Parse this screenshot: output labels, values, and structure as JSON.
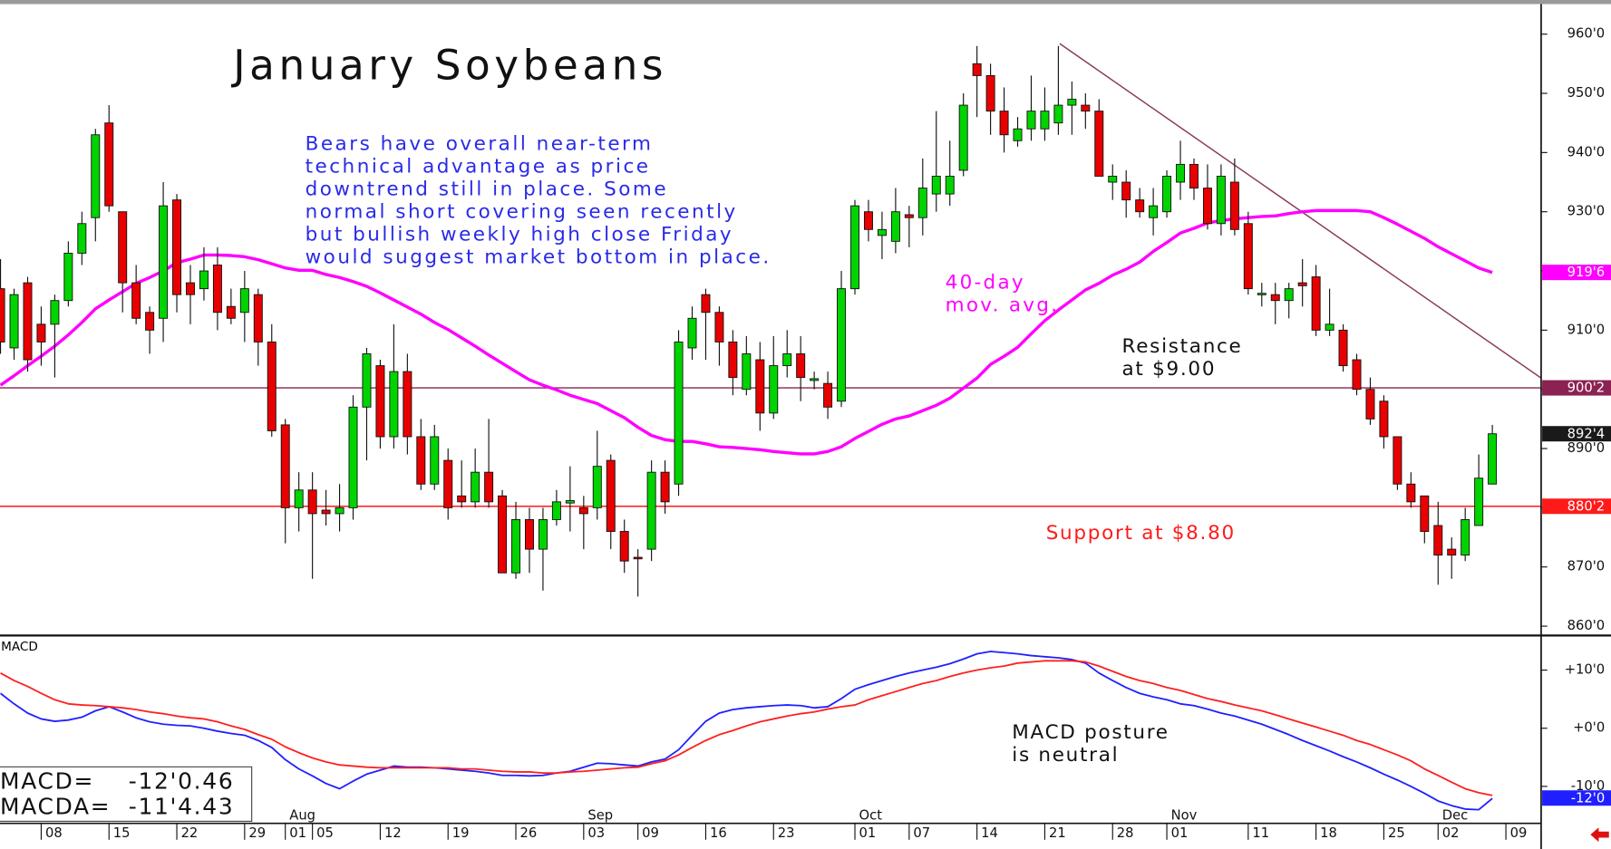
{
  "chart_data": {
    "type": "candlestick",
    "title": "January Soybeans",
    "comment": [
      "Bears have overall near-term",
      "technical advantage as price",
      "downtrend still in place. Some",
      "normal short covering seen recently",
      "but bullish weekly high close Friday",
      "would suggest market bottom in place."
    ],
    "categories": [
      null,
      null,
      null,
      "08",
      null,
      null,
      null,
      null,
      "15",
      null,
      null,
      null,
      null,
      "22",
      null,
      null,
      null,
      null,
      "29",
      null,
      null,
      "01",
      null,
      "05",
      null,
      null,
      null,
      null,
      "12",
      null,
      null,
      null,
      null,
      "19",
      null,
      null,
      null,
      null,
      "26",
      null,
      null,
      null,
      null,
      "03",
      null,
      null,
      null,
      "09",
      null,
      null,
      null,
      null,
      "16",
      null,
      null,
      null,
      null,
      "23",
      null,
      null,
      null,
      null,
      null,
      "01",
      null,
      null,
      null,
      "07",
      null,
      null,
      null,
      null,
      "14",
      null,
      null,
      null,
      null,
      "21",
      null,
      null,
      null,
      null,
      "28",
      null,
      null,
      null,
      "01",
      null,
      null,
      null,
      null,
      null,
      "11",
      null,
      null,
      null,
      null,
      "18",
      null,
      null,
      null,
      null,
      "25",
      null,
      null,
      null,
      "02",
      null,
      null,
      null,
      null,
      "09"
    ],
    "months": [
      null,
      null,
      null,
      null,
      null,
      null,
      null,
      null,
      null,
      null,
      null,
      null,
      null,
      null,
      null,
      null,
      null,
      null,
      null,
      null,
      null,
      "Aug",
      null,
      null,
      null,
      null,
      null,
      null,
      null,
      null,
      null,
      null,
      null,
      null,
      null,
      null,
      null,
      null,
      null,
      null,
      null,
      null,
      null,
      "Sep",
      null,
      null,
      null,
      null,
      null,
      null,
      null,
      null,
      null,
      null,
      null,
      null,
      null,
      null,
      null,
      null,
      null,
      null,
      null,
      "Oct",
      null,
      null,
      null,
      null,
      null,
      null,
      null,
      null,
      null,
      null,
      null,
      null,
      null,
      null,
      null,
      null,
      null,
      null,
      null,
      null,
      null,
      null,
      "Nov",
      null,
      null,
      null,
      null,
      null,
      null,
      null,
      null,
      null,
      null,
      null,
      null,
      null,
      null,
      null,
      null,
      null,
      null,
      null,
      "Dec",
      null,
      null,
      null,
      null,
      null
    ],
    "open": [
      917,
      907,
      918,
      911,
      911,
      915,
      923,
      929,
      945,
      930,
      918,
      913,
      912,
      932,
      918,
      917,
      921,
      914,
      913,
      916,
      908,
      894,
      880,
      883,
      879.6,
      879,
      880,
      897,
      904,
      892,
      903,
      892,
      884,
      888,
      882,
      881,
      886,
      882,
      869,
      878,
      873,
      878,
      880.8,
      880,
      880,
      888,
      876,
      871.6,
      873,
      886,
      884,
      907,
      916,
      913,
      908,
      900,
      905,
      896,
      904,
      906,
      901.5,
      901,
      898,
      917,
      930,
      926,
      925,
      929.5,
      929,
      933,
      933,
      937,
      955,
      953,
      947,
      942,
      944,
      944,
      945,
      948,
      948,
      947,
      935,
      935,
      932,
      929,
      930,
      935,
      938,
      934,
      928,
      935,
      928,
      916,
      916,
      915,
      918,
      919,
      910,
      910,
      905,
      900,
      898,
      892,
      884,
      882,
      877,
      873,
      872,
      877,
      884,
      null
    ],
    "high": [
      922,
      917,
      919,
      914,
      916,
      925,
      930,
      944,
      948,
      930,
      921,
      914,
      935,
      933,
      921,
      924,
      924,
      917,
      920,
      917,
      911,
      895,
      886,
      886,
      883,
      884,
      899,
      907,
      905,
      911,
      906,
      895,
      894,
      890,
      888,
      890,
      895,
      883,
      881,
      880,
      880,
      883,
      887,
      882,
      893,
      889,
      878,
      873,
      888,
      888,
      910,
      914,
      917,
      914,
      910,
      909,
      908,
      909,
      910,
      909,
      903,
      903,
      920,
      932,
      932,
      930,
      934,
      931,
      939,
      947,
      942,
      950,
      958,
      955,
      951,
      946,
      953,
      951,
      958,
      952,
      950,
      949,
      938,
      937,
      934,
      934,
      937,
      942,
      939,
      938,
      938,
      939,
      930,
      918,
      918,
      918,
      922,
      921,
      917,
      911,
      906,
      902,
      899,
      892,
      886,
      882,
      881,
      875,
      880,
      889,
      894,
      null
    ],
    "low": [
      906,
      905,
      903,
      904,
      902,
      914,
      921,
      925,
      930,
      913,
      911,
      906,
      908,
      913,
      911,
      915,
      910,
      911,
      908,
      904,
      892,
      874,
      876,
      868,
      877,
      876,
      878,
      888,
      890,
      890,
      889,
      883,
      883,
      878,
      880,
      880,
      880,
      869,
      868,
      869,
      866,
      877,
      876,
      873,
      878,
      873,
      869,
      865,
      871,
      879,
      882,
      905,
      905,
      904,
      899,
      899,
      893,
      895,
      902,
      898,
      900,
      895,
      897,
      916,
      925,
      922,
      923,
      924,
      926,
      930,
      931,
      936,
      946,
      943,
      940,
      941,
      942,
      942,
      943,
      943,
      944,
      936,
      932,
      929,
      929,
      926,
      929,
      932,
      932,
      927,
      926,
      926,
      916,
      914,
      911,
      912,
      914,
      909,
      909,
      903,
      899,
      894,
      890,
      883,
      880,
      874,
      867,
      868,
      871,
      877,
      884,
      null
    ],
    "close": [
      908,
      916,
      905,
      908,
      915,
      923,
      928,
      943,
      931,
      918,
      912,
      910,
      931,
      916,
      916,
      920,
      913,
      912,
      917,
      908,
      893,
      880,
      883,
      879,
      879,
      880,
      897,
      906,
      892,
      903,
      892,
      884,
      892,
      880,
      881,
      886,
      881,
      869,
      878,
      873,
      878,
      881,
      881.2,
      879,
      887,
      876,
      871,
      871.4,
      886,
      881,
      908,
      912,
      913,
      908,
      902,
      906,
      896,
      904,
      906,
      902,
      901.8,
      897,
      917,
      931,
      927,
      927,
      930,
      929,
      934,
      936,
      936,
      948,
      953,
      947,
      943,
      944,
      947,
      947,
      948,
      949,
      947,
      936,
      936,
      932,
      930,
      931,
      936,
      938,
      934,
      928,
      936,
      927,
      917,
      916.2,
      915,
      917,
      917.5,
      910,
      911,
      904,
      900,
      895,
      892,
      884,
      881,
      876,
      872,
      872,
      878,
      885,
      892.5,
      null
    ],
    "up_color": "#00d400",
    "down_color": "#e80000",
    "ma": {
      "label_lines": [
        "40-day",
        "mov. avg."
      ],
      "color": "#ff00ff",
      "values": [
        900.7,
        902.3,
        904.0,
        905.6,
        907.3,
        909.2,
        911.3,
        913.6,
        915.1,
        916.5,
        917.9,
        918.9,
        920.0,
        921.4,
        922.0,
        922.7,
        922.7,
        922.6,
        922.4,
        921.9,
        921.2,
        920.5,
        920.1,
        920.1,
        919.4,
        918.9,
        918.2,
        917.4,
        916.3,
        915.1,
        913.9,
        912.7,
        911.3,
        910.1,
        908.7,
        907.3,
        905.8,
        904.4,
        903.0,
        901.6,
        900.7,
        899.9,
        899.0,
        898.3,
        897.6,
        896.4,
        895.2,
        893.6,
        892.2,
        891.5,
        891.2,
        891.2,
        890.8,
        890.3,
        890.2,
        890.0,
        889.8,
        889.5,
        889.3,
        889.1,
        889.1,
        889.5,
        890.3,
        891.7,
        892.9,
        894.1,
        895.0,
        895.5,
        896.4,
        897.3,
        898.5,
        900.2,
        901.9,
        904.2,
        905.6,
        907.1,
        909.4,
        911.6,
        913.4,
        915.1,
        916.8,
        917.9,
        919.3,
        920.3,
        921.5,
        923.3,
        924.8,
        926.4,
        927.2,
        928.1,
        928.5,
        928.8,
        929.0,
        929.2,
        929.3,
        929.7,
        930.0,
        930.2,
        930.2,
        930.2,
        930.2,
        930.0,
        929.0,
        927.9,
        926.7,
        925.5,
        924.1,
        922.9,
        921.7,
        920.5,
        919.75,
        null
      ]
    },
    "ylim": [
      858.6,
      964.9
    ],
    "yticks": [
      {
        "value": 960,
        "label": "960'0"
      },
      {
        "value": 950,
        "label": "950'0"
      },
      {
        "value": 940,
        "label": "940'0"
      },
      {
        "value": 930,
        "label": "930'0"
      },
      {
        "value": 920,
        "label": "920'0"
      },
      {
        "value": 910,
        "label": "910'0"
      },
      {
        "value": 900,
        "label": "900'0"
      },
      {
        "value": 890,
        "label": "890'0"
      },
      {
        "value": 880,
        "label": "880'0"
      },
      {
        "value": 870,
        "label": "870'0"
      },
      {
        "value": 860,
        "label": "860'0"
      }
    ],
    "hlines": [
      {
        "value": 900.25,
        "label": "900'2",
        "color": "#8b2252"
      },
      {
        "value": 880.25,
        "label": "880'2",
        "color": "#ff1a1a"
      }
    ],
    "price_tags": [
      {
        "value": 919.75,
        "label": "919'6",
        "color": "#ff00ff"
      },
      {
        "value": 892.5,
        "label": "892'4",
        "color": "#1a1a1a"
      }
    ],
    "trendline": {
      "color": "#8b3a5a",
      "start": {
        "index": 78.1,
        "value": 958.4
      },
      "end": {
        "index": 113.6,
        "value": 901.9
      }
    },
    "resistance_text": [
      "Resistance",
      "at $9.00"
    ],
    "support_text": "Support at $8.80",
    "macd": {
      "title": "MACD",
      "note": [
        "MACD posture",
        "is neutral"
      ],
      "ylim": [
        -16,
        15.6
      ],
      "yticks": [
        {
          "value": 10,
          "label": "+10'0"
        },
        {
          "value": 0,
          "label": "+0'0"
        },
        {
          "value": -10,
          "label": "-10'0"
        }
      ],
      "tag": {
        "value": -12,
        "label": "-12'0",
        "color": "#2020ff"
      },
      "readouts": [
        {
          "label": "MACD=",
          "value": "-12'0.46"
        },
        {
          "label": "MACDA=",
          "value": "-11'4.43"
        }
      ],
      "series": [
        {
          "color": "#2020ff",
          "values": [
            6.0,
            4.2,
            2.6,
            1.6,
            1.2,
            1.4,
            1.9,
            3.0,
            3.7,
            2.8,
            1.8,
            1.1,
            0.7,
            0.5,
            0.4,
            0.0,
            -0.5,
            -0.9,
            -1.2,
            -2.1,
            -3.3,
            -5.4,
            -7.0,
            -8.2,
            -9.5,
            -10.4,
            -9.1,
            -7.9,
            -7.2,
            -6.5,
            -6.7,
            -6.7,
            -6.8,
            -7.0,
            -7.2,
            -7.4,
            -7.7,
            -8.1,
            -8.1,
            -8.2,
            -8.1,
            -7.7,
            -7.4,
            -6.7,
            -6.0,
            -6.1,
            -6.3,
            -6.5,
            -5.8,
            -5.3,
            -3.7,
            -1.2,
            1.2,
            2.6,
            3.2,
            3.5,
            3.7,
            3.9,
            4.0,
            3.9,
            3.5,
            3.7,
            5.1,
            6.7,
            7.5,
            8.2,
            8.9,
            9.5,
            10.0,
            10.5,
            11.1,
            11.9,
            12.8,
            13.2,
            13.0,
            12.8,
            12.5,
            12.3,
            12.1,
            11.8,
            11.2,
            9.5,
            8.2,
            7.0,
            6.0,
            5.4,
            4.9,
            4.2,
            3.9,
            3.3,
            2.6,
            2.1,
            1.4,
            0.7,
            -0.2,
            -1.1,
            -2.1,
            -3.0,
            -3.9,
            -4.9,
            -5.8,
            -6.8,
            -7.9,
            -8.9,
            -10.0,
            -11.2,
            -12.5,
            -13.3,
            -13.9,
            -14.0,
            -12.06,
            null
          ]
        },
        {
          "color": "#ff2020",
          "values": [
            9.5,
            8.2,
            7.2,
            6.0,
            4.9,
            4.2,
            4.0,
            3.9,
            3.7,
            3.5,
            3.2,
            2.8,
            2.5,
            2.1,
            1.8,
            1.6,
            1.1,
            0.4,
            -0.2,
            -1.1,
            -1.9,
            -3.2,
            -4.2,
            -5.1,
            -5.8,
            -6.3,
            -6.5,
            -6.7,
            -6.8,
            -6.8,
            -6.8,
            -6.8,
            -6.8,
            -6.8,
            -7.0,
            -7.0,
            -7.2,
            -7.4,
            -7.5,
            -7.5,
            -7.7,
            -7.7,
            -7.5,
            -7.4,
            -7.2,
            -7.0,
            -6.8,
            -6.7,
            -6.1,
            -5.6,
            -4.6,
            -3.3,
            -2.1,
            -1.1,
            -0.4,
            0.4,
            1.1,
            1.6,
            2.1,
            2.5,
            2.8,
            3.3,
            3.7,
            4.0,
            4.9,
            5.6,
            6.3,
            7.0,
            7.7,
            8.2,
            8.9,
            9.5,
            10.0,
            10.4,
            10.7,
            11.2,
            11.4,
            11.6,
            11.6,
            11.6,
            11.4,
            10.7,
            9.8,
            8.9,
            8.2,
            7.7,
            7.0,
            6.5,
            5.8,
            5.1,
            4.6,
            4.0,
            3.5,
            3.0,
            2.3,
            1.6,
            0.9,
            0.2,
            -0.5,
            -1.2,
            -2.1,
            -2.8,
            -3.7,
            -4.6,
            -5.6,
            -7.0,
            -8.1,
            -9.3,
            -10.4,
            -11.1,
            -11.55,
            null
          ]
        }
      ]
    }
  }
}
